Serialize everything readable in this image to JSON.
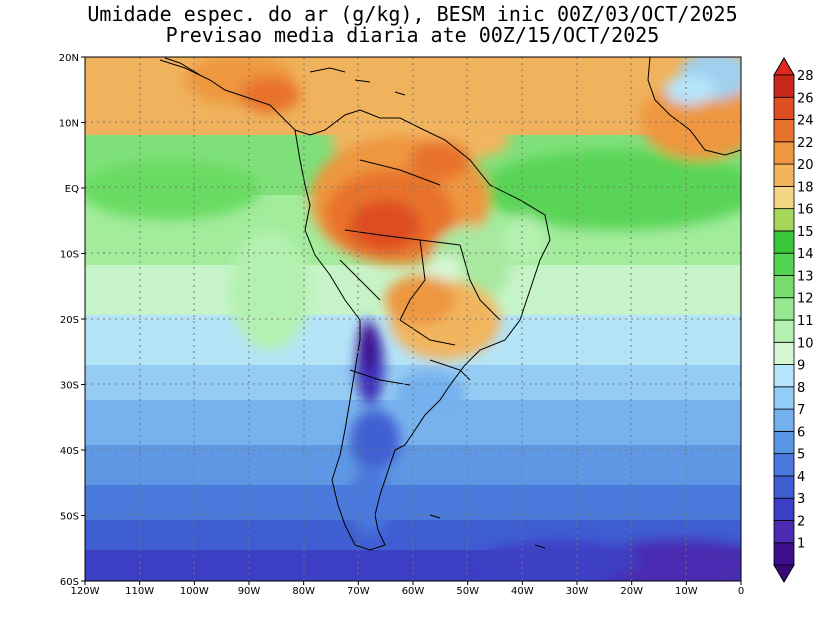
{
  "title_line1": "Umidade espec. do ar (g/kg), BESM inic 00Z/03/OCT/2025",
  "title_line2": "Previsao media diaria ate 00Z/15/OCT/2025",
  "lat_labels": [
    "20N",
    "10N",
    "EQ",
    "10S",
    "20S",
    "30S",
    "40S",
    "50S",
    "60S"
  ],
  "lon_labels": [
    "120W",
    "110W",
    "100W",
    "90W",
    "80W",
    "70W",
    "60W",
    "50W",
    "40W",
    "30W",
    "20W",
    "10W",
    "0"
  ],
  "colorbar": {
    "labels": [
      "1",
      "2",
      "3",
      "4",
      "5",
      "6",
      "7",
      "8",
      "9",
      "10",
      "11",
      "12",
      "13",
      "14",
      "15",
      "16",
      "18",
      "20",
      "22",
      "24",
      "26",
      "28"
    ],
    "colors": [
      "#3c0f8c",
      "#4a2ab0",
      "#3c3fc4",
      "#3f5ed2",
      "#4a78dc",
      "#5a96e6",
      "#74b1ee",
      "#93ccf6",
      "#b6e4fb",
      "#d6f7d6",
      "#b4f0b0",
      "#96e98e",
      "#77df70",
      "#55d451",
      "#39c639",
      "#a6d65a",
      "#f6d586",
      "#f2b55e",
      "#ee9740",
      "#e8722c",
      "#de4e22",
      "#c8281c"
    ],
    "arrow_top_color": "#e02a1e",
    "arrow_bottom_color": "#3a0a7a"
  },
  "map": {
    "lon_range": [
      -120,
      0
    ],
    "lat_range": [
      -60,
      20
    ],
    "grid": "dotted"
  }
}
